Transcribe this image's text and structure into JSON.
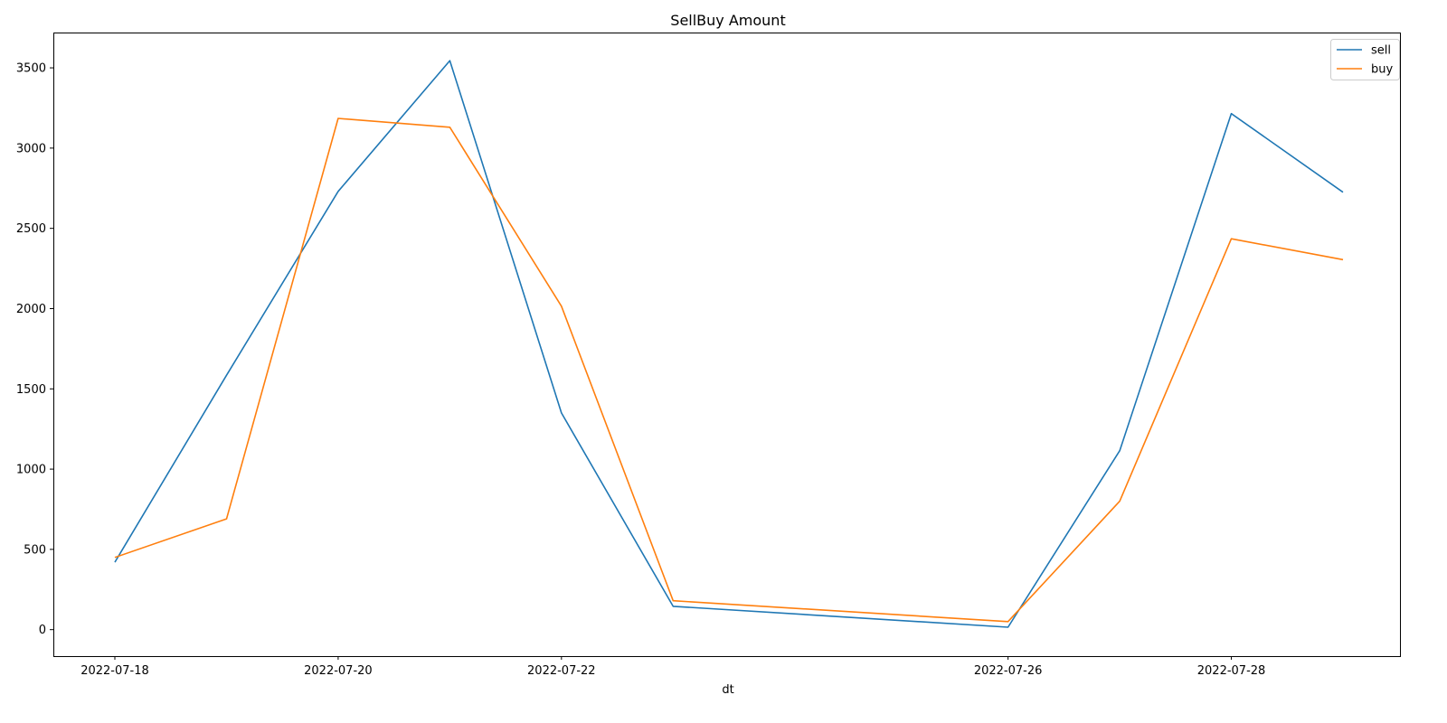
{
  "chart_data": {
    "type": "line",
    "title": "SellBuy Amount",
    "xlabel": "dt",
    "ylabel": "",
    "x": [
      "2022-07-18",
      "2022-07-19",
      "2022-07-20",
      "2022-07-21",
      "2022-07-22",
      "2022-07-23",
      "2022-07-26",
      "2022-07-27",
      "2022-07-28",
      "2022-07-29"
    ],
    "x_tick_labels": [
      "2022-07-18",
      "2022-07-20",
      "2022-07-22",
      "2022-07-26",
      "2022-07-28"
    ],
    "y_ticks": [
      0,
      500,
      1000,
      1500,
      2000,
      2500,
      3000,
      3500
    ],
    "ylim": [
      -165,
      3720
    ],
    "grid": false,
    "legend_position": "top-right",
    "series": [
      {
        "name": "sell",
        "color": "#1f77b4",
        "values": [
          420,
          1585,
          2730,
          3545,
          1350,
          145,
          15,
          1115,
          3215,
          2725
        ]
      },
      {
        "name": "buy",
        "color": "#ff7f0e",
        "values": [
          450,
          690,
          3185,
          3130,
          2015,
          180,
          50,
          800,
          2435,
          2305
        ]
      }
    ]
  }
}
